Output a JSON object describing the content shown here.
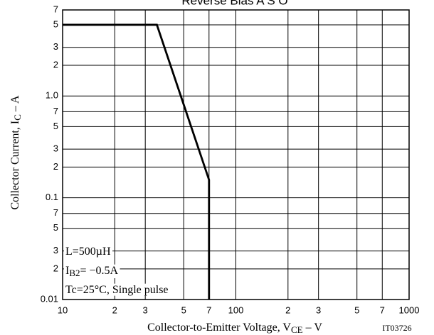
{
  "chart_data": {
    "type": "line",
    "title": "Reverse Bias A S O",
    "x_label": {
      "text": "Collector-to-Emitter Voltage, V",
      "sub": "CE",
      "tail": " –  V"
    },
    "y_label": {
      "text": "Collector Current, I",
      "sub": "C",
      "tail": "  –  A"
    },
    "code": "IT03726",
    "annotations": [
      {
        "text": "L=500µH"
      },
      {
        "text": "I",
        "sub": "B2",
        "tail": "= −0.5A"
      },
      {
        "text": "Tc=25°C, Single pulse"
      }
    ],
    "x_log": true,
    "y_log": true,
    "grid": true,
    "xlim": [
      10,
      1000
    ],
    "ylim": [
      0.01,
      7
    ],
    "xticks": [
      10,
      {
        "value": 20,
        "label": "2"
      },
      {
        "value": 30,
        "label": "3"
      },
      {
        "value": 50,
        "label": "5"
      },
      {
        "value": 70,
        "label": "7"
      },
      100,
      {
        "value": 200,
        "label": "2"
      },
      {
        "value": 300,
        "label": "3"
      },
      {
        "value": 500,
        "label": "5"
      },
      {
        "value": 700,
        "label": "7"
      },
      1000
    ],
    "yticks": [
      7,
      5,
      3,
      2,
      {
        "value": 1,
        "label": "1.0"
      },
      {
        "value": 0.7,
        "label": "7"
      },
      {
        "value": 0.5,
        "label": "5"
      },
      {
        "value": 0.3,
        "label": "3"
      },
      {
        "value": 0.2,
        "label": "2"
      },
      0.1,
      {
        "value": 0.07,
        "label": "7"
      },
      {
        "value": 0.05,
        "label": "5"
      },
      {
        "value": 0.03,
        "label": "3"
      },
      {
        "value": 0.02,
        "label": "2"
      },
      0.01
    ],
    "series": [
      {
        "color": "#000000",
        "x": [
          10,
          35,
          70,
          70
        ],
        "values": [
          5,
          5,
          0.15,
          0.01
        ]
      }
    ]
  }
}
